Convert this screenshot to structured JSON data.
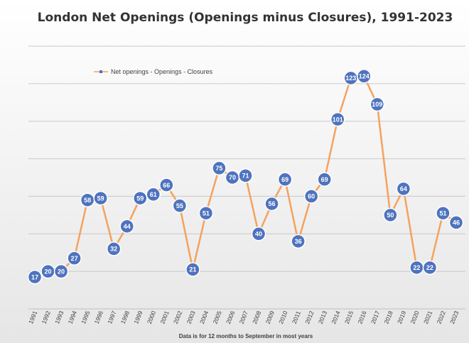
{
  "chart_data": {
    "type": "line",
    "title": "London Net Openings (Openings minus Closures), 1991-2023",
    "footnote": "Data is  for 12 months to September in most years",
    "series": [
      {
        "name": "Net openings - Openings - Closures",
        "color": "#f5a25d",
        "marker_color": "#4f73be",
        "label_color": "#ffffff",
        "values": [
          17,
          20,
          20,
          27,
          58,
          59,
          32,
          44,
          59,
          61,
          66,
          55,
          21,
          51,
          75,
          70,
          71,
          40,
          56,
          69,
          36,
          60,
          69,
          101,
          123,
          124,
          109,
          50,
          64,
          22,
          22,
          51,
          46
        ]
      }
    ],
    "categories": [
      "1991",
      "1992",
      "1993",
      "1994",
      "1995",
      "1996",
      "1997",
      "1998",
      "1999",
      "2000",
      "2001",
      "2002",
      "2003",
      "2004",
      "2005",
      "2006",
      "2007",
      "2008",
      "2009",
      "2010",
      "2011",
      "2012",
      "2013",
      "2014",
      "2015",
      "2016",
      "2017",
      "2018",
      "2019",
      "2020",
      "2021",
      "2022",
      "2023"
    ],
    "ylim": [
      0,
      140
    ],
    "grid": true,
    "legend_position": "top-left"
  }
}
